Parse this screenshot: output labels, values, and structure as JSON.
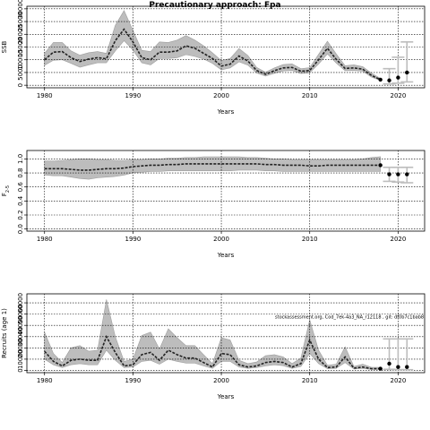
{
  "page": {
    "title": "Precautionary approach: Fpa"
  },
  "colors": {
    "band": "#bdbdbd",
    "band_edge": "#9e9e9e",
    "line": "#222222",
    "grid": "#000000",
    "proj": "#bdbdbd"
  },
  "chart_data": [
    {
      "id": "ssb",
      "type": "line",
      "title": "Precautionary approach: Fpa",
      "xlabel": "Years",
      "ylabel": "SSB",
      "xlim": [
        1978,
        2023
      ],
      "ylim": [
        -1000,
        31000
      ],
      "xticks": [
        1980,
        1990,
        2000,
        2010,
        2020
      ],
      "yticks": [
        0,
        5000,
        10000,
        15000,
        20000,
        25000,
        30000
      ],
      "grid": true,
      "x": [
        1980,
        1981,
        1982,
        1983,
        1984,
        1985,
        1986,
        1987,
        1988,
        1989,
        1990,
        1991,
        1992,
        1993,
        1994,
        1995,
        1996,
        1997,
        1998,
        1999,
        2000,
        2001,
        2002,
        2003,
        2004,
        2005,
        2006,
        2007,
        2008,
        2009,
        2010,
        2011,
        2012,
        2013,
        2014,
        2015,
        2016,
        2017,
        2018
      ],
      "estimate": [
        10000,
        13000,
        13200,
        10800,
        9300,
        10300,
        10800,
        10400,
        17500,
        22000,
        17000,
        10800,
        10000,
        13000,
        13000,
        13500,
        15500,
        14500,
        12500,
        10500,
        7500,
        8300,
        11500,
        9500,
        5800,
        4300,
        5700,
        6800,
        7000,
        5500,
        5800,
        10000,
        14500,
        10200,
        6600,
        6800,
        6300,
        3800,
        2200
      ],
      "lower": [
        7800,
        9800,
        10000,
        8600,
        7100,
        8000,
        8800,
        8800,
        13500,
        17500,
        13800,
        8800,
        8000,
        10500,
        10500,
        10800,
        12000,
        11300,
        10300,
        8600,
        6000,
        6800,
        9200,
        7900,
        4800,
        3600,
        4700,
        5600,
        5800,
        4600,
        4900,
        8300,
        12300,
        8700,
        5700,
        5800,
        5500,
        3200,
        1900
      ],
      "upper": [
        12500,
        16800,
        16800,
        13500,
        11800,
        12800,
        13200,
        12500,
        23500,
        29300,
        21500,
        13700,
        13200,
        17000,
        16800,
        17700,
        19500,
        17700,
        15500,
        12700,
        9700,
        10500,
        14400,
        11700,
        7000,
        5100,
        6800,
        8100,
        8400,
        6500,
        6900,
        12100,
        17300,
        12300,
        7700,
        8000,
        7300,
        4700,
        2700
      ],
      "projection": {
        "x": [
          2019,
          2020,
          2021
        ],
        "values": [
          1900,
          3000,
          5000
        ],
        "lower": [
          500,
          800,
          1300
        ],
        "upper": [
          6500,
          11000,
          17000
        ]
      }
    },
    {
      "id": "f",
      "type": "line",
      "title": "",
      "xlabel": "Years",
      "ylabel": "F2-5",
      "ylabel_main": "F",
      "ylabel_sub": "2-5",
      "xlim": [
        1978,
        2023
      ],
      "ylim": [
        -0.03,
        1.12
      ],
      "xticks": [
        1980,
        1990,
        2000,
        2010,
        2020
      ],
      "yticks": [
        0.0,
        0.2,
        0.4,
        0.6,
        0.8,
        1.0
      ],
      "ytick_labels": [
        "0.0",
        "0.2",
        "0.4",
        "0.6",
        "0.8",
        "1.0"
      ],
      "grid": true,
      "x": [
        1980,
        1981,
        1982,
        1983,
        1984,
        1985,
        1986,
        1987,
        1988,
        1989,
        1990,
        1991,
        1992,
        1993,
        1994,
        1995,
        1996,
        1997,
        1998,
        1999,
        2000,
        2001,
        2002,
        2003,
        2004,
        2005,
        2006,
        2007,
        2008,
        2009,
        2010,
        2011,
        2012,
        2013,
        2014,
        2015,
        2016,
        2017,
        2018
      ],
      "estimate": [
        0.86,
        0.86,
        0.86,
        0.85,
        0.84,
        0.84,
        0.85,
        0.86,
        0.86,
        0.87,
        0.89,
        0.9,
        0.91,
        0.91,
        0.92,
        0.92,
        0.93,
        0.93,
        0.93,
        0.93,
        0.93,
        0.93,
        0.93,
        0.93,
        0.93,
        0.92,
        0.92,
        0.91,
        0.91,
        0.91,
        0.9,
        0.9,
        0.91,
        0.91,
        0.91,
        0.91,
        0.91,
        0.91,
        0.91
      ],
      "lower": [
        0.77,
        0.76,
        0.76,
        0.74,
        0.72,
        0.71,
        0.73,
        0.74,
        0.75,
        0.77,
        0.8,
        0.81,
        0.82,
        0.82,
        0.83,
        0.83,
        0.83,
        0.83,
        0.83,
        0.83,
        0.83,
        0.83,
        0.84,
        0.84,
        0.84,
        0.83,
        0.83,
        0.82,
        0.82,
        0.82,
        0.82,
        0.82,
        0.82,
        0.82,
        0.82,
        0.82,
        0.82,
        0.82,
        0.82
      ],
      "upper": [
        0.97,
        0.97,
        0.98,
        0.99,
        1.0,
        1.0,
        0.99,
        0.99,
        0.98,
        0.98,
        0.99,
        0.99,
        1.0,
        1.0,
        1.01,
        1.01,
        1.02,
        1.02,
        1.03,
        1.03,
        1.03,
        1.03,
        1.03,
        1.02,
        1.02,
        1.01,
        1.0,
        1.0,
        0.99,
        0.99,
        0.99,
        0.99,
        0.99,
        0.99,
        0.99,
        0.99,
        1.0,
        1.02,
        1.03
      ],
      "projection": {
        "x": [
          2019,
          2020,
          2021
        ],
        "values": [
          0.78,
          0.78,
          0.78
        ],
        "lower": [
          0.68,
          0.67,
          0.66
        ],
        "upper": [
          0.88,
          0.88,
          0.88
        ]
      }
    },
    {
      "id": "recruits",
      "type": "line",
      "title": "",
      "xlabel": "Years",
      "ylabel": "Recruits (age 1)",
      "xlim": [
        1978,
        2023
      ],
      "ylim": [
        -2000,
        68000
      ],
      "xticks": [
        1980,
        1990,
        2000,
        2010,
        2020
      ],
      "yticks": [
        0,
        10000,
        20000,
        30000,
        40000,
        50000,
        60000
      ],
      "grid": true,
      "annotation": "stockassessment.org, Cod_7ek-4a3_NA_r12118 , git: df0b7c1bab8",
      "x": [
        1980,
        1981,
        1982,
        1983,
        1984,
        1985,
        1986,
        1987,
        1988,
        1989,
        1990,
        1991,
        1992,
        1993,
        1994,
        1995,
        1996,
        1997,
        1998,
        1999,
        2000,
        2001,
        2002,
        2003,
        2004,
        2005,
        2006,
        2007,
        2008,
        2009,
        2010,
        2011,
        2012,
        2013,
        2014,
        2015,
        2016,
        2017,
        2018
      ],
      "estimate": [
        17000,
        8000,
        4000,
        9000,
        10000,
        9000,
        9000,
        30000,
        16000,
        4000,
        5000,
        14000,
        16000,
        9000,
        18000,
        14000,
        11000,
        11000,
        7000,
        3000,
        15000,
        14000,
        5000,
        3000,
        4000,
        7000,
        8000,
        7000,
        3000,
        6000,
        27000,
        10000,
        2500,
        3000,
        12000,
        2000,
        3000,
        1500,
        1500
      ],
      "lower": [
        10000,
        5000,
        2500,
        5000,
        6000,
        5000,
        5000,
        18000,
        9000,
        2500,
        3000,
        8000,
        9000,
        5500,
        10000,
        8000,
        6500,
        6500,
        4000,
        1800,
        8000,
        8000,
        3000,
        1800,
        2500,
        4000,
        5000,
        4200,
        1800,
        3500,
        15000,
        6000,
        1500,
        1800,
        7000,
        1200,
        1800,
        900,
        900
      ],
      "upper": [
        34000,
        15000,
        7000,
        20000,
        22000,
        17000,
        18000,
        63000,
        30000,
        8000,
        10000,
        31000,
        34000,
        19000,
        37000,
        29000,
        22000,
        22000,
        14000,
        6000,
        29000,
        27000,
        9000,
        6000,
        7500,
        13000,
        14000,
        12000,
        6000,
        11000,
        45000,
        18000,
        4500,
        5500,
        21000,
        3500,
        5500,
        2800,
        2800
      ],
      "projection": {
        "x": [
          2019,
          2020,
          2021
        ],
        "values": [
          6000,
          3000,
          3000
        ],
        "lower": [
          1000,
          700,
          600
        ],
        "upper": [
          28000,
          28000,
          28000
        ]
      }
    }
  ]
}
